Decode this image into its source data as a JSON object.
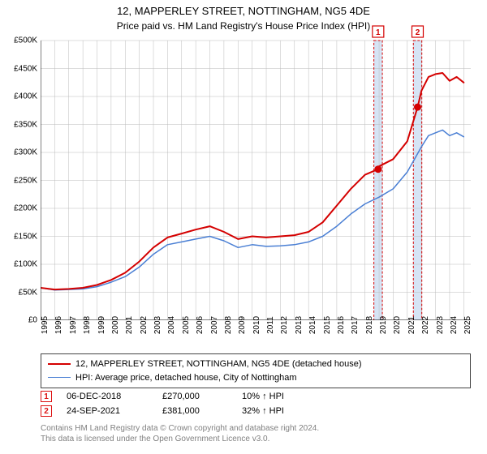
{
  "title": "12, MAPPERLEY STREET, NOTTINGHAM, NG5 4DE",
  "subtitle": "Price paid vs. HM Land Registry's House Price Index (HPI)",
  "chart": {
    "type": "line",
    "background_color": "#ffffff",
    "grid_color": "#bbbbbb",
    "axis_color": "#000000",
    "xlim": [
      1995,
      2025.5
    ],
    "ylim": [
      0,
      500000
    ],
    "y_ticks": [
      0,
      50000,
      100000,
      150000,
      200000,
      250000,
      300000,
      350000,
      400000,
      450000,
      500000
    ],
    "y_tick_labels": [
      "£0",
      "£50K",
      "£100K",
      "£150K",
      "£200K",
      "£250K",
      "£300K",
      "£350K",
      "£400K",
      "£450K",
      "£500K"
    ],
    "x_ticks": [
      1995,
      1996,
      1997,
      1998,
      1999,
      2000,
      2001,
      2002,
      2003,
      2004,
      2005,
      2006,
      2007,
      2008,
      2009,
      2010,
      2011,
      2012,
      2013,
      2014,
      2015,
      2016,
      2017,
      2018,
      2019,
      2020,
      2021,
      2022,
      2023,
      2024,
      2025
    ],
    "label_fontsize": 10,
    "series": [
      {
        "name": "property",
        "label": "12, MAPPERLEY STREET, NOTTINGHAM, NG5 4DE (detached house)",
        "color": "#d40000",
        "line_width": 2,
        "data": [
          [
            1995,
            58000
          ],
          [
            1996,
            55000
          ],
          [
            1997,
            56000
          ],
          [
            1998,
            58000
          ],
          [
            1999,
            63000
          ],
          [
            2000,
            72000
          ],
          [
            2001,
            85000
          ],
          [
            2002,
            105000
          ],
          [
            2003,
            130000
          ],
          [
            2004,
            148000
          ],
          [
            2005,
            155000
          ],
          [
            2006,
            162000
          ],
          [
            2007,
            168000
          ],
          [
            2008,
            158000
          ],
          [
            2009,
            145000
          ],
          [
            2010,
            150000
          ],
          [
            2011,
            148000
          ],
          [
            2012,
            150000
          ],
          [
            2013,
            152000
          ],
          [
            2014,
            158000
          ],
          [
            2015,
            175000
          ],
          [
            2016,
            205000
          ],
          [
            2017,
            235000
          ],
          [
            2018,
            260000
          ],
          [
            2018.93,
            270000
          ],
          [
            2019,
            275000
          ],
          [
            2020,
            288000
          ],
          [
            2021,
            320000
          ],
          [
            2021.73,
            381000
          ],
          [
            2022,
            410000
          ],
          [
            2022.5,
            435000
          ],
          [
            2023,
            440000
          ],
          [
            2023.5,
            442000
          ],
          [
            2024,
            428000
          ],
          [
            2024.5,
            435000
          ],
          [
            2025,
            425000
          ]
        ]
      },
      {
        "name": "hpi",
        "label": "HPI: Average price, detached house, City of Nottingham",
        "color": "#4a7fd4",
        "line_width": 1.5,
        "data": [
          [
            1995,
            58000
          ],
          [
            1996,
            54000
          ],
          [
            1997,
            55000
          ],
          [
            1998,
            56000
          ],
          [
            1999,
            60000
          ],
          [
            2000,
            68000
          ],
          [
            2001,
            78000
          ],
          [
            2002,
            95000
          ],
          [
            2003,
            118000
          ],
          [
            2004,
            135000
          ],
          [
            2005,
            140000
          ],
          [
            2006,
            145000
          ],
          [
            2007,
            150000
          ],
          [
            2008,
            142000
          ],
          [
            2009,
            130000
          ],
          [
            2010,
            135000
          ],
          [
            2011,
            132000
          ],
          [
            2012,
            133000
          ],
          [
            2013,
            135000
          ],
          [
            2014,
            140000
          ],
          [
            2015,
            150000
          ],
          [
            2016,
            168000
          ],
          [
            2017,
            190000
          ],
          [
            2018,
            208000
          ],
          [
            2019,
            220000
          ],
          [
            2020,
            235000
          ],
          [
            2021,
            265000
          ],
          [
            2022,
            310000
          ],
          [
            2022.5,
            330000
          ],
          [
            2023,
            335000
          ],
          [
            2023.5,
            340000
          ],
          [
            2024,
            330000
          ],
          [
            2024.5,
            335000
          ],
          [
            2025,
            328000
          ]
        ]
      }
    ],
    "sale_bands": [
      {
        "x": 2018.93,
        "label": "1"
      },
      {
        "x": 2021.73,
        "label": "2"
      }
    ],
    "sale_band_fill": "#d6e4f5",
    "sale_band_border": "#d40000",
    "sale_band_width": 0.6,
    "sale_markers": [
      {
        "x": 2018.93,
        "y": 270000
      },
      {
        "x": 2021.73,
        "y": 381000
      }
    ],
    "sale_marker_color": "#d40000",
    "sale_marker_radius": 4.5
  },
  "legend": {
    "border_color": "#444444",
    "fontsize": 11
  },
  "sales_table": [
    {
      "marker": "1",
      "date": "06-DEC-2018",
      "price": "£270,000",
      "diff": "10% ↑ HPI"
    },
    {
      "marker": "2",
      "date": "24-SEP-2021",
      "price": "£381,000",
      "diff": "32% ↑ HPI"
    }
  ],
  "footer_line1": "Contains HM Land Registry data © Crown copyright and database right 2024.",
  "footer_line2": "This data is licensed under the Open Government Licence v3.0.",
  "footer_color": "#808080"
}
